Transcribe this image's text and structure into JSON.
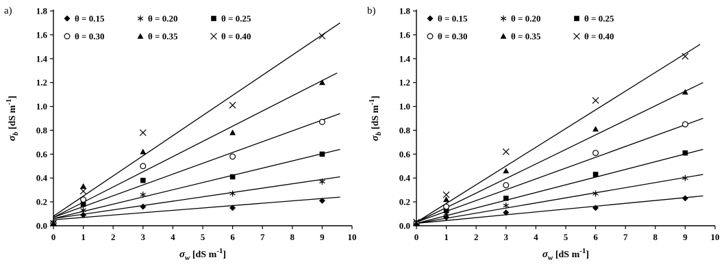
{
  "figure": {
    "background": "#ffffff",
    "text_color": "#000000",
    "line_color": "#000000"
  },
  "chart_data": [
    {
      "type": "scatter",
      "panel_label": "a)",
      "xlabel_parts": {
        "sym": "σ",
        "sub": "w",
        "unit": " [dS m",
        "sup": "-1",
        "close": "]"
      },
      "ylabel_parts": {
        "sym": "σ",
        "sub": "b",
        "unit": " [dS m",
        "sup": "-1",
        "close": "]"
      },
      "xlim": [
        0,
        10
      ],
      "ylim": [
        0,
        1.8
      ],
      "xticks": [
        0,
        1,
        2,
        3,
        4,
        5,
        6,
        7,
        8,
        9,
        10
      ],
      "yticks": [
        0,
        0.2,
        0.4,
        0.6,
        0.8,
        1.0,
        1.2,
        1.4,
        1.6,
        1.8
      ],
      "x": [
        0,
        1,
        3,
        6,
        9
      ],
      "legend": {
        "rows": 2,
        "cols": 3,
        "position": "top-inside"
      },
      "series": [
        {
          "name": "θ = 0.15",
          "marker": "diamond",
          "values": [
            0.02,
            0.09,
            0.16,
            0.15,
            0.21
          ],
          "line": {
            "x1": 0,
            "y1": 0.05,
            "x2": 9.6,
            "y2": 0.24
          }
        },
        {
          "name": "θ = 0.20",
          "marker": "asterisk",
          "values": [
            0.02,
            0.13,
            0.26,
            0.27,
            0.37
          ],
          "line": {
            "x1": 0,
            "y1": 0.06,
            "x2": 9.6,
            "y2": 0.41
          }
        },
        {
          "name": "θ = 0.25",
          "marker": "square",
          "values": [
            0.02,
            0.18,
            0.38,
            0.41,
            0.6
          ],
          "line": {
            "x1": 0,
            "y1": 0.06,
            "x2": 9.6,
            "y2": 0.64
          }
        },
        {
          "name": "θ = 0.30",
          "marker": "circle",
          "values": [
            0.02,
            0.22,
            0.5,
            0.58,
            0.87
          ],
          "line": {
            "x1": 0,
            "y1": 0.07,
            "x2": 9.6,
            "y2": 0.94
          }
        },
        {
          "name": "θ = 0.35",
          "marker": "triangle",
          "values": [
            0.02,
            0.33,
            0.62,
            0.78,
            1.2
          ],
          "line": {
            "x1": 0,
            "y1": 0.07,
            "x2": 9.5,
            "y2": 1.28
          }
        },
        {
          "name": "θ = 0.40",
          "marker": "x",
          "values": [
            0.02,
            0.29,
            0.78,
            1.01,
            1.59
          ],
          "line": {
            "x1": 0,
            "y1": 0.08,
            "x2": 9.6,
            "y2": 1.7
          }
        }
      ]
    },
    {
      "type": "scatter",
      "panel_label": "b)",
      "xlabel_parts": {
        "sym": "σ",
        "sub": "w",
        "unit": " [dS m",
        "sup": "-1",
        "close": "]"
      },
      "ylabel_parts": {
        "sym": "σ",
        "sub": "b",
        "unit": " [dS m",
        "sup": "-1",
        "close": "]"
      },
      "xlim": [
        0,
        10
      ],
      "ylim": [
        0,
        1.8
      ],
      "xticks": [
        0,
        1,
        2,
        3,
        4,
        5,
        6,
        7,
        8,
        9,
        10
      ],
      "yticks": [
        0,
        0.2,
        0.4,
        0.6,
        0.8,
        1.0,
        1.2,
        1.4,
        1.6,
        1.8
      ],
      "x": [
        0,
        1,
        3,
        6,
        9
      ],
      "legend": {
        "rows": 2,
        "cols": 3,
        "position": "top-inside"
      },
      "series": [
        {
          "name": "θ = 0.15",
          "marker": "diamond",
          "values": [
            0.02,
            0.07,
            0.11,
            0.15,
            0.23
          ],
          "line": {
            "x1": 0,
            "y1": 0.02,
            "x2": 9.6,
            "y2": 0.25
          }
        },
        {
          "name": "θ = 0.20",
          "marker": "asterisk",
          "values": [
            0.02,
            0.1,
            0.17,
            0.27,
            0.4
          ],
          "line": {
            "x1": 0,
            "y1": 0.02,
            "x2": 9.6,
            "y2": 0.43
          }
        },
        {
          "name": "θ = 0.25",
          "marker": "square",
          "values": [
            0.02,
            0.13,
            0.23,
            0.43,
            0.61
          ],
          "line": {
            "x1": 0,
            "y1": 0.02,
            "x2": 9.6,
            "y2": 0.64
          }
        },
        {
          "name": "θ = 0.30",
          "marker": "circle",
          "values": [
            0.02,
            0.16,
            0.34,
            0.61,
            0.85
          ],
          "line": {
            "x1": 0,
            "y1": 0.03,
            "x2": 9.6,
            "y2": 0.9
          }
        },
        {
          "name": "θ = 0.35",
          "marker": "triangle",
          "values": [
            0.02,
            0.22,
            0.46,
            0.81,
            1.12
          ],
          "line": {
            "x1": 0,
            "y1": 0.03,
            "x2": 9.6,
            "y2": 1.2
          }
        },
        {
          "name": "θ = 0.40",
          "marker": "x",
          "values": [
            0.03,
            0.26,
            0.62,
            1.05,
            1.42
          ],
          "line": {
            "x1": 0,
            "y1": 0.03,
            "x2": 9.5,
            "y2": 1.52
          }
        }
      ]
    }
  ]
}
